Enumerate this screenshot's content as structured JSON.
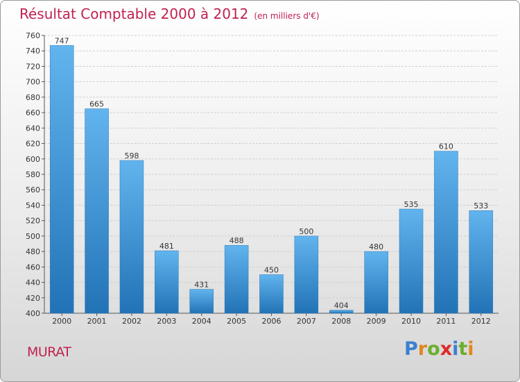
{
  "title": "Résultat Comptable 2000 à 2012",
  "subtitle": "(en milliers d'€)",
  "commune": "MURAT",
  "logo": {
    "p": "P",
    "r": "r",
    "o": "o",
    "x": "x",
    "i1": "i",
    "t": "t",
    "i2": "i"
  },
  "colors": {
    "title": "#c0214f",
    "bar_top": "#62b4ee",
    "bar_bottom": "#2273b6"
  },
  "chart_data": {
    "type": "bar",
    "title": "Résultat Comptable 2000 à 2012",
    "ylabel": "en milliers d'€",
    "xlabel": "",
    "categories": [
      "2000",
      "2001",
      "2002",
      "2003",
      "2004",
      "2005",
      "2006",
      "2007",
      "2008",
      "2009",
      "2010",
      "2011",
      "2012"
    ],
    "values": [
      747,
      665,
      598,
      481,
      431,
      488,
      450,
      500,
      404,
      480,
      535,
      610,
      533
    ],
    "ylim": [
      400,
      760
    ],
    "yticks": [
      400,
      420,
      440,
      460,
      480,
      500,
      520,
      540,
      560,
      580,
      600,
      620,
      640,
      660,
      680,
      700,
      720,
      740,
      760
    ],
    "grid": true
  }
}
